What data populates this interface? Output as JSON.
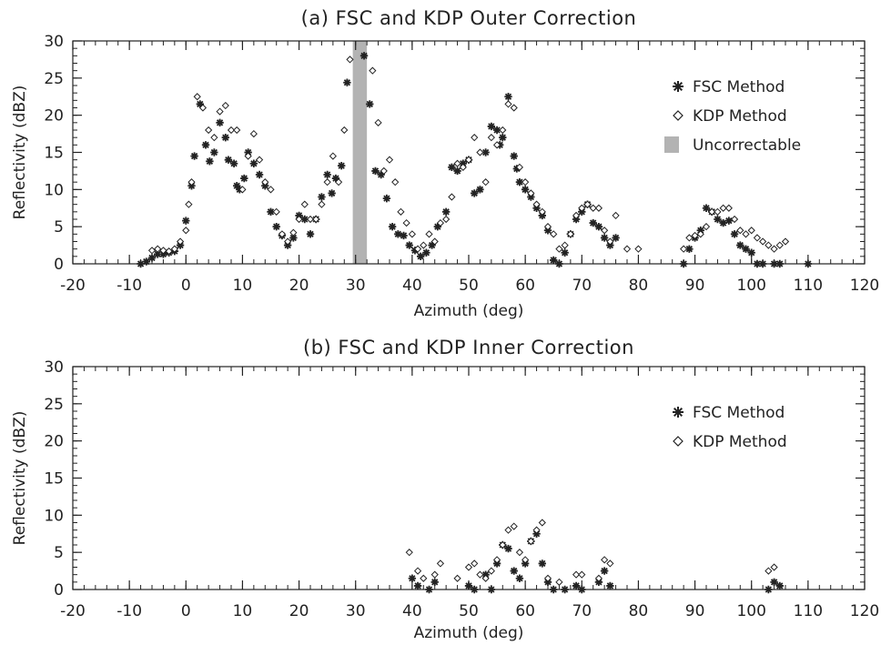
{
  "chart_data": [
    {
      "type": "scatter",
      "title": "(a) FSC and KDP Outer Correction",
      "xlabel": "Azimuth (deg)",
      "ylabel": "Reflectivity (dBZ)",
      "xlim": [
        -20,
        120
      ],
      "ylim": [
        0,
        30
      ],
      "xticks": [
        -20,
        -10,
        0,
        10,
        20,
        30,
        40,
        50,
        60,
        70,
        80,
        90,
        100,
        110,
        120
      ],
      "yticks": [
        0,
        5,
        10,
        15,
        20,
        25,
        30
      ],
      "grid": false,
      "legend_position": "upper-right",
      "series": [
        {
          "name": "FSC Method",
          "marker": "asterisk",
          "points": [
            [
              -8,
              0
            ],
            [
              -7,
              0.3
            ],
            [
              -6,
              0.8
            ],
            [
              -5,
              1.3
            ],
            [
              -4,
              1.3
            ],
            [
              -3,
              1.5
            ],
            [
              -2,
              1.7
            ],
            [
              -1,
              2.5
            ],
            [
              0,
              5.8
            ],
            [
              1,
              10.5
            ],
            [
              1.5,
              14.5
            ],
            [
              2.5,
              21.5
            ],
            [
              3.5,
              16
            ],
            [
              4.2,
              13.8
            ],
            [
              5,
              15
            ],
            [
              6,
              19
            ],
            [
              7,
              17
            ],
            [
              7.5,
              14
            ],
            [
              8.5,
              13.5
            ],
            [
              9,
              10.5
            ],
            [
              9.5,
              10
            ],
            [
              10.3,
              11.5
            ],
            [
              11,
              15
            ],
            [
              12,
              13.5
            ],
            [
              13,
              12
            ],
            [
              14,
              10.5
            ],
            [
              15,
              7
            ],
            [
              16,
              5
            ],
            [
              17,
              3.8
            ],
            [
              18,
              2.5
            ],
            [
              19,
              3.5
            ],
            [
              20,
              6.5
            ],
            [
              21,
              6
            ],
            [
              22,
              4
            ],
            [
              23,
              6
            ],
            [
              24,
              9
            ],
            [
              25,
              12
            ],
            [
              25.8,
              9.5
            ],
            [
              26.5,
              11.5
            ],
            [
              27.5,
              13.2
            ],
            [
              28.5,
              24.4
            ],
            [
              31.5,
              28
            ],
            [
              32.5,
              21.5
            ],
            [
              33.5,
              12.5
            ],
            [
              34.5,
              12
            ],
            [
              35.5,
              8.8
            ],
            [
              36.5,
              5
            ],
            [
              37.5,
              4
            ],
            [
              38.5,
              3.8
            ],
            [
              39.5,
              2.5
            ],
            [
              40.5,
              1.8
            ],
            [
              41.5,
              1
            ],
            [
              42.5,
              1.5
            ],
            [
              43.5,
              2.5
            ],
            [
              44.5,
              5
            ],
            [
              46,
              7
            ],
            [
              47,
              13
            ],
            [
              48,
              12.5
            ],
            [
              49,
              13.5
            ],
            [
              50,
              14
            ],
            [
              51,
              9.5
            ],
            [
              52,
              10
            ],
            [
              53,
              15
            ],
            [
              54,
              18.5
            ],
            [
              55,
              18
            ],
            [
              55.5,
              16
            ],
            [
              56,
              17
            ],
            [
              57,
              22.5
            ],
            [
              58,
              14.5
            ],
            [
              58.5,
              12.8
            ],
            [
              59,
              11
            ],
            [
              60,
              10
            ],
            [
              61,
              9
            ],
            [
              62,
              7.5
            ],
            [
              63,
              6.5
            ],
            [
              64,
              4.5
            ],
            [
              65,
              0.5
            ],
            [
              66,
              0
            ],
            [
              67,
              1.5
            ],
            [
              68,
              4
            ],
            [
              69,
              6
            ],
            [
              70,
              7
            ],
            [
              71,
              8
            ],
            [
              72,
              5.5
            ],
            [
              73,
              5
            ],
            [
              74,
              3.5
            ],
            [
              75,
              2.5
            ],
            [
              76,
              3.5
            ],
            [
              88,
              0
            ],
            [
              89,
              2
            ],
            [
              90,
              3.5
            ],
            [
              91,
              4.5
            ],
            [
              92,
              7.5
            ],
            [
              93,
              7
            ],
            [
              94,
              6
            ],
            [
              95,
              5.5
            ],
            [
              96,
              5.8
            ],
            [
              97,
              4
            ],
            [
              98,
              2.5
            ],
            [
              99,
              2
            ],
            [
              100,
              1.5
            ],
            [
              101,
              0
            ],
            [
              102,
              0
            ],
            [
              104,
              0
            ],
            [
              105,
              0
            ],
            [
              110,
              0
            ]
          ]
        },
        {
          "name": "KDP Method",
          "marker": "diamond",
          "points": [
            [
              -6,
              1.8
            ],
            [
              -5,
              2
            ],
            [
              -4,
              1.8
            ],
            [
              -3,
              1.7
            ],
            [
              -2,
              2
            ],
            [
              -1,
              3
            ],
            [
              0,
              4.5
            ],
            [
              0.5,
              8
            ],
            [
              1,
              11
            ],
            [
              2,
              22.5
            ],
            [
              3,
              21
            ],
            [
              4,
              18
            ],
            [
              5,
              17
            ],
            [
              6,
              20.5
            ],
            [
              7,
              21.3
            ],
            [
              8,
              18
            ],
            [
              9,
              18
            ],
            [
              10,
              10
            ],
            [
              11,
              14.5
            ],
            [
              12,
              17.5
            ],
            [
              13,
              14
            ],
            [
              14,
              11
            ],
            [
              15,
              10
            ],
            [
              16,
              7
            ],
            [
              17,
              4
            ],
            [
              18,
              3
            ],
            [
              19,
              4.2
            ],
            [
              20,
              6
            ],
            [
              21,
              8
            ],
            [
              22,
              6
            ],
            [
              23,
              6
            ],
            [
              24,
              8
            ],
            [
              25,
              11
            ],
            [
              26,
              14.5
            ],
            [
              27,
              11
            ],
            [
              28,
              18
            ],
            [
              29,
              27.5
            ],
            [
              33,
              26
            ],
            [
              34,
              19
            ],
            [
              35,
              12.5
            ],
            [
              36,
              14
            ],
            [
              37,
              11
            ],
            [
              38,
              7
            ],
            [
              39,
              5.5
            ],
            [
              40,
              4
            ],
            [
              41,
              2
            ],
            [
              42,
              2.5
            ],
            [
              43,
              4
            ],
            [
              44,
              3
            ],
            [
              45,
              5.5
            ],
            [
              46,
              6
            ],
            [
              47,
              9
            ],
            [
              48,
              13.5
            ],
            [
              49,
              13
            ],
            [
              50,
              14
            ],
            [
              51,
              17
            ],
            [
              52,
              15
            ],
            [
              53,
              11
            ],
            [
              54,
              17
            ],
            [
              55,
              16
            ],
            [
              56,
              18
            ],
            [
              57,
              21.5
            ],
            [
              58,
              21
            ],
            [
              59,
              13
            ],
            [
              60,
              11
            ],
            [
              61,
              9.5
            ],
            [
              62,
              8
            ],
            [
              63,
              7
            ],
            [
              64,
              5
            ],
            [
              65,
              4
            ],
            [
              66,
              2
            ],
            [
              67,
              2.5
            ],
            [
              68,
              4
            ],
            [
              69,
              6.5
            ],
            [
              70,
              7.5
            ],
            [
              71,
              8
            ],
            [
              72,
              7.5
            ],
            [
              73,
              7.5
            ],
            [
              74,
              4.5
            ],
            [
              75,
              3
            ],
            [
              76,
              6.5
            ],
            [
              78,
              2
            ],
            [
              80,
              2
            ],
            [
              88,
              2
            ],
            [
              89,
              3.5
            ],
            [
              90,
              3.8
            ],
            [
              91,
              4
            ],
            [
              92,
              5
            ],
            [
              93,
              7
            ],
            [
              94,
              7
            ],
            [
              95,
              7.5
            ],
            [
              96,
              7.5
            ],
            [
              97,
              6
            ],
            [
              98,
              4.5
            ],
            [
              99,
              4
            ],
            [
              100,
              4.5
            ],
            [
              101,
              3.5
            ],
            [
              102,
              3
            ],
            [
              103,
              2.5
            ],
            [
              104,
              2
            ],
            [
              105,
              2.5
            ],
            [
              106,
              3
            ]
          ]
        }
      ],
      "shaded_region": {
        "name": "Uncorrectable",
        "x_start": 29.5,
        "x_end": 32,
        "color": "#b3b3b3"
      }
    },
    {
      "type": "scatter",
      "title": "(b) FSC and KDP Inner Correction",
      "xlabel": "Azimuth (deg)",
      "ylabel": "Reflectivity (dBZ)",
      "xlim": [
        -20,
        120
      ],
      "ylim": [
        0,
        30
      ],
      "xticks": [
        -20,
        -10,
        0,
        10,
        20,
        30,
        40,
        50,
        60,
        70,
        80,
        90,
        100,
        110,
        120
      ],
      "yticks": [
        0,
        5,
        10,
        15,
        20,
        25,
        30
      ],
      "grid": false,
      "legend_position": "upper-right",
      "series": [
        {
          "name": "FSC Method",
          "marker": "asterisk",
          "points": [
            [
              40,
              1.5
            ],
            [
              41,
              0.5
            ],
            [
              43,
              0
            ],
            [
              44,
              1
            ],
            [
              50,
              0.5
            ],
            [
              51,
              0
            ],
            [
              53,
              2
            ],
            [
              54,
              0
            ],
            [
              55,
              3.5
            ],
            [
              56,
              6
            ],
            [
              57,
              5.5
            ],
            [
              58,
              2.5
            ],
            [
              59,
              1.5
            ],
            [
              60,
              3.5
            ],
            [
              61,
              6.5
            ],
            [
              62,
              7.5
            ],
            [
              63,
              3.5
            ],
            [
              64,
              1
            ],
            [
              65,
              0
            ],
            [
              67,
              0
            ],
            [
              69,
              0.5
            ],
            [
              70,
              0
            ],
            [
              73,
              1
            ],
            [
              74,
              2.5
            ],
            [
              75,
              0.5
            ],
            [
              103,
              0
            ],
            [
              104,
              1
            ],
            [
              105,
              0.5
            ]
          ]
        },
        {
          "name": "KDP Method",
          "marker": "diamond",
          "points": [
            [
              39.5,
              5
            ],
            [
              41,
              2.5
            ],
            [
              42,
              1.5
            ],
            [
              44,
              2
            ],
            [
              45,
              3.5
            ],
            [
              48,
              1.5
            ],
            [
              50,
              3
            ],
            [
              51,
              3.5
            ],
            [
              52,
              2
            ],
            [
              53,
              1.5
            ],
            [
              54,
              2.5
            ],
            [
              55,
              4
            ],
            [
              56,
              6
            ],
            [
              57,
              8
            ],
            [
              58,
              8.5
            ],
            [
              59,
              5
            ],
            [
              60,
              4
            ],
            [
              61,
              6.5
            ],
            [
              62,
              8
            ],
            [
              63,
              9
            ],
            [
              64,
              1.5
            ],
            [
              66,
              1
            ],
            [
              69,
              2
            ],
            [
              70,
              2
            ],
            [
              73,
              1.5
            ],
            [
              74,
              4
            ],
            [
              75,
              3.5
            ],
            [
              103,
              2.5
            ],
            [
              104,
              3
            ]
          ]
        }
      ]
    }
  ]
}
